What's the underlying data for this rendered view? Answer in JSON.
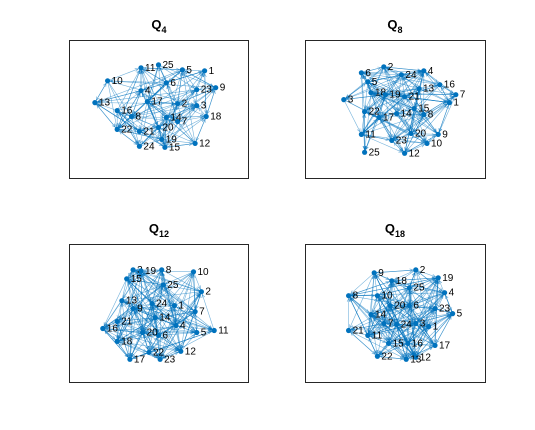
{
  "colors": {
    "edge": "#0072BD",
    "node": "#0072BD",
    "axes": "#262626",
    "background": "#ffffff"
  },
  "chart_data": [
    {
      "type": "graph",
      "title": "Q",
      "title_subscript": "4",
      "nodes": [
        {
          "label": "1",
          "x": 0.79,
          "y": 0.27
        },
        {
          "label": "2",
          "x": 0.62,
          "y": 0.6
        },
        {
          "label": "3",
          "x": 0.74,
          "y": 0.62
        },
        {
          "label": "4",
          "x": 0.39,
          "y": 0.47
        },
        {
          "label": "5",
          "x": 0.65,
          "y": 0.26
        },
        {
          "label": "6",
          "x": 0.55,
          "y": 0.39
        },
        {
          "label": "7",
          "x": 0.62,
          "y": 0.78
        },
        {
          "label": "8",
          "x": 0.33,
          "y": 0.73
        },
        {
          "label": "9",
          "x": 0.86,
          "y": 0.44
        },
        {
          "label": "10",
          "x": 0.18,
          "y": 0.37
        },
        {
          "label": "11",
          "x": 0.39,
          "y": 0.24
        },
        {
          "label": "12",
          "x": 0.73,
          "y": 1.0
        },
        {
          "label": "13",
          "x": 0.1,
          "y": 0.59
        },
        {
          "label": "14",
          "x": 0.55,
          "y": 0.74
        },
        {
          "label": "15",
          "x": 0.54,
          "y": 1.04
        },
        {
          "label": "16",
          "x": 0.24,
          "y": 0.67
        },
        {
          "label": "17",
          "x": 0.43,
          "y": 0.58
        },
        {
          "label": "18",
          "x": 0.8,
          "y": 0.73
        },
        {
          "label": "19",
          "x": 0.52,
          "y": 0.96
        },
        {
          "label": "20",
          "x": 0.5,
          "y": 0.84
        },
        {
          "label": "21",
          "x": 0.38,
          "y": 0.88
        },
        {
          "label": "22",
          "x": 0.24,
          "y": 0.86
        },
        {
          "label": "23",
          "x": 0.74,
          "y": 0.46
        },
        {
          "label": "24",
          "x": 0.38,
          "y": 1.03
        },
        {
          "label": "25",
          "x": 0.5,
          "y": 0.21
        }
      ]
    },
    {
      "type": "graph",
      "title": "Q",
      "title_subscript": "8",
      "nodes": [
        {
          "label": "1",
          "x": 0.84,
          "y": 0.59
        },
        {
          "label": "2",
          "x": 0.43,
          "y": 0.23
        },
        {
          "label": "3",
          "x": 0.18,
          "y": 0.56
        },
        {
          "label": "4",
          "x": 0.68,
          "y": 0.27
        },
        {
          "label": "5",
          "x": 0.33,
          "y": 0.38
        },
        {
          "label": "6",
          "x": 0.29,
          "y": 0.29
        },
        {
          "label": "7",
          "x": 0.88,
          "y": 0.51
        },
        {
          "label": "8",
          "x": 0.68,
          "y": 0.71
        },
        {
          "label": "9",
          "x": 0.77,
          "y": 0.91
        },
        {
          "label": "10",
          "x": 0.7,
          "y": 1.0
        },
        {
          "label": "11",
          "x": 0.29,
          "y": 0.91
        },
        {
          "label": "12",
          "x": 0.56,
          "y": 1.1
        },
        {
          "label": "13",
          "x": 0.65,
          "y": 0.45
        },
        {
          "label": "14",
          "x": 0.51,
          "y": 0.7
        },
        {
          "label": "15",
          "x": 0.62,
          "y": 0.65
        },
        {
          "label": "16",
          "x": 0.78,
          "y": 0.41
        },
        {
          "label": "17",
          "x": 0.4,
          "y": 0.74
        },
        {
          "label": "18",
          "x": 0.35,
          "y": 0.49
        },
        {
          "label": "19",
          "x": 0.44,
          "y": 0.51
        },
        {
          "label": "20",
          "x": 0.6,
          "y": 0.9
        },
        {
          "label": "21",
          "x": 0.56,
          "y": 0.53
        },
        {
          "label": "22",
          "x": 0.31,
          "y": 0.68
        },
        {
          "label": "23",
          "x": 0.48,
          "y": 0.97
        },
        {
          "label": "24",
          "x": 0.54,
          "y": 0.31
        },
        {
          "label": "25",
          "x": 0.31,
          "y": 1.09
        }
      ]
    },
    {
      "type": "graph",
      "title": "Q",
      "title_subscript": "12",
      "nodes": [
        {
          "label": "1",
          "x": 0.6,
          "y": 0.58
        },
        {
          "label": "2",
          "x": 0.77,
          "y": 0.44
        },
        {
          "label": "3",
          "x": 0.34,
          "y": 0.22
        },
        {
          "label": "4",
          "x": 0.61,
          "y": 0.78
        },
        {
          "label": "5",
          "x": 0.74,
          "y": 0.85
        },
        {
          "label": "6",
          "x": 0.5,
          "y": 0.88
        },
        {
          "label": "7",
          "x": 0.73,
          "y": 0.64
        },
        {
          "label": "8",
          "x": 0.52,
          "y": 0.22
        },
        {
          "label": "9",
          "x": 0.34,
          "y": 0.61
        },
        {
          "label": "10",
          "x": 0.72,
          "y": 0.24
        },
        {
          "label": "11",
          "x": 0.85,
          "y": 0.83
        },
        {
          "label": "12",
          "x": 0.64,
          "y": 1.04
        },
        {
          "label": "13",
          "x": 0.27,
          "y": 0.53
        },
        {
          "label": "14",
          "x": 0.48,
          "y": 0.7
        },
        {
          "label": "15",
          "x": 0.3,
          "y": 0.31
        },
        {
          "label": "16",
          "x": 0.15,
          "y": 0.81
        },
        {
          "label": "17",
          "x": 0.32,
          "y": 1.12
        },
        {
          "label": "18",
          "x": 0.24,
          "y": 0.94
        },
        {
          "label": "19",
          "x": 0.39,
          "y": 0.23
        },
        {
          "label": "20",
          "x": 0.4,
          "y": 0.85
        },
        {
          "label": "21",
          "x": 0.24,
          "y": 0.74
        },
        {
          "label": "22",
          "x": 0.44,
          "y": 1.05
        },
        {
          "label": "23",
          "x": 0.51,
          "y": 1.12
        },
        {
          "label": "24",
          "x": 0.46,
          "y": 0.56
        },
        {
          "label": "25",
          "x": 0.53,
          "y": 0.37
        }
      ]
    },
    {
      "type": "graph",
      "title": "Q",
      "title_subscript": "18",
      "nodes": [
        {
          "label": "1",
          "x": 0.71,
          "y": 0.79
        },
        {
          "label": "2",
          "x": 0.63,
          "y": 0.22
        },
        {
          "label": "3",
          "x": 0.63,
          "y": 0.76
        },
        {
          "label": "4",
          "x": 0.81,
          "y": 0.45
        },
        {
          "label": "5",
          "x": 0.86,
          "y": 0.66
        },
        {
          "label": "6",
          "x": 0.59,
          "y": 0.58
        },
        {
          "label": "7",
          "x": 0.43,
          "y": 0.76
        },
        {
          "label": "8",
          "x": 0.21,
          "y": 0.48
        },
        {
          "label": "9",
          "x": 0.37,
          "y": 0.25
        },
        {
          "label": "10",
          "x": 0.39,
          "y": 0.48
        },
        {
          "label": "11",
          "x": 0.33,
          "y": 0.88
        },
        {
          "label": "12",
          "x": 0.63,
          "y": 1.1
        },
        {
          "label": "13",
          "x": 0.57,
          "y": 1.12
        },
        {
          "label": "14",
          "x": 0.35,
          "y": 0.67
        },
        {
          "label": "15",
          "x": 0.46,
          "y": 0.96
        },
        {
          "label": "16",
          "x": 0.58,
          "y": 0.96
        },
        {
          "label": "17",
          "x": 0.75,
          "y": 0.98
        },
        {
          "label": "18",
          "x": 0.48,
          "y": 0.33
        },
        {
          "label": "19",
          "x": 0.77,
          "y": 0.3
        },
        {
          "label": "20",
          "x": 0.47,
          "y": 0.58
        },
        {
          "label": "21",
          "x": 0.21,
          "y": 0.83
        },
        {
          "label": "22",
          "x": 0.39,
          "y": 1.09
        },
        {
          "label": "23",
          "x": 0.75,
          "y": 0.61
        },
        {
          "label": "24",
          "x": 0.51,
          "y": 0.77
        },
        {
          "label": "25",
          "x": 0.59,
          "y": 0.4
        }
      ]
    }
  ]
}
